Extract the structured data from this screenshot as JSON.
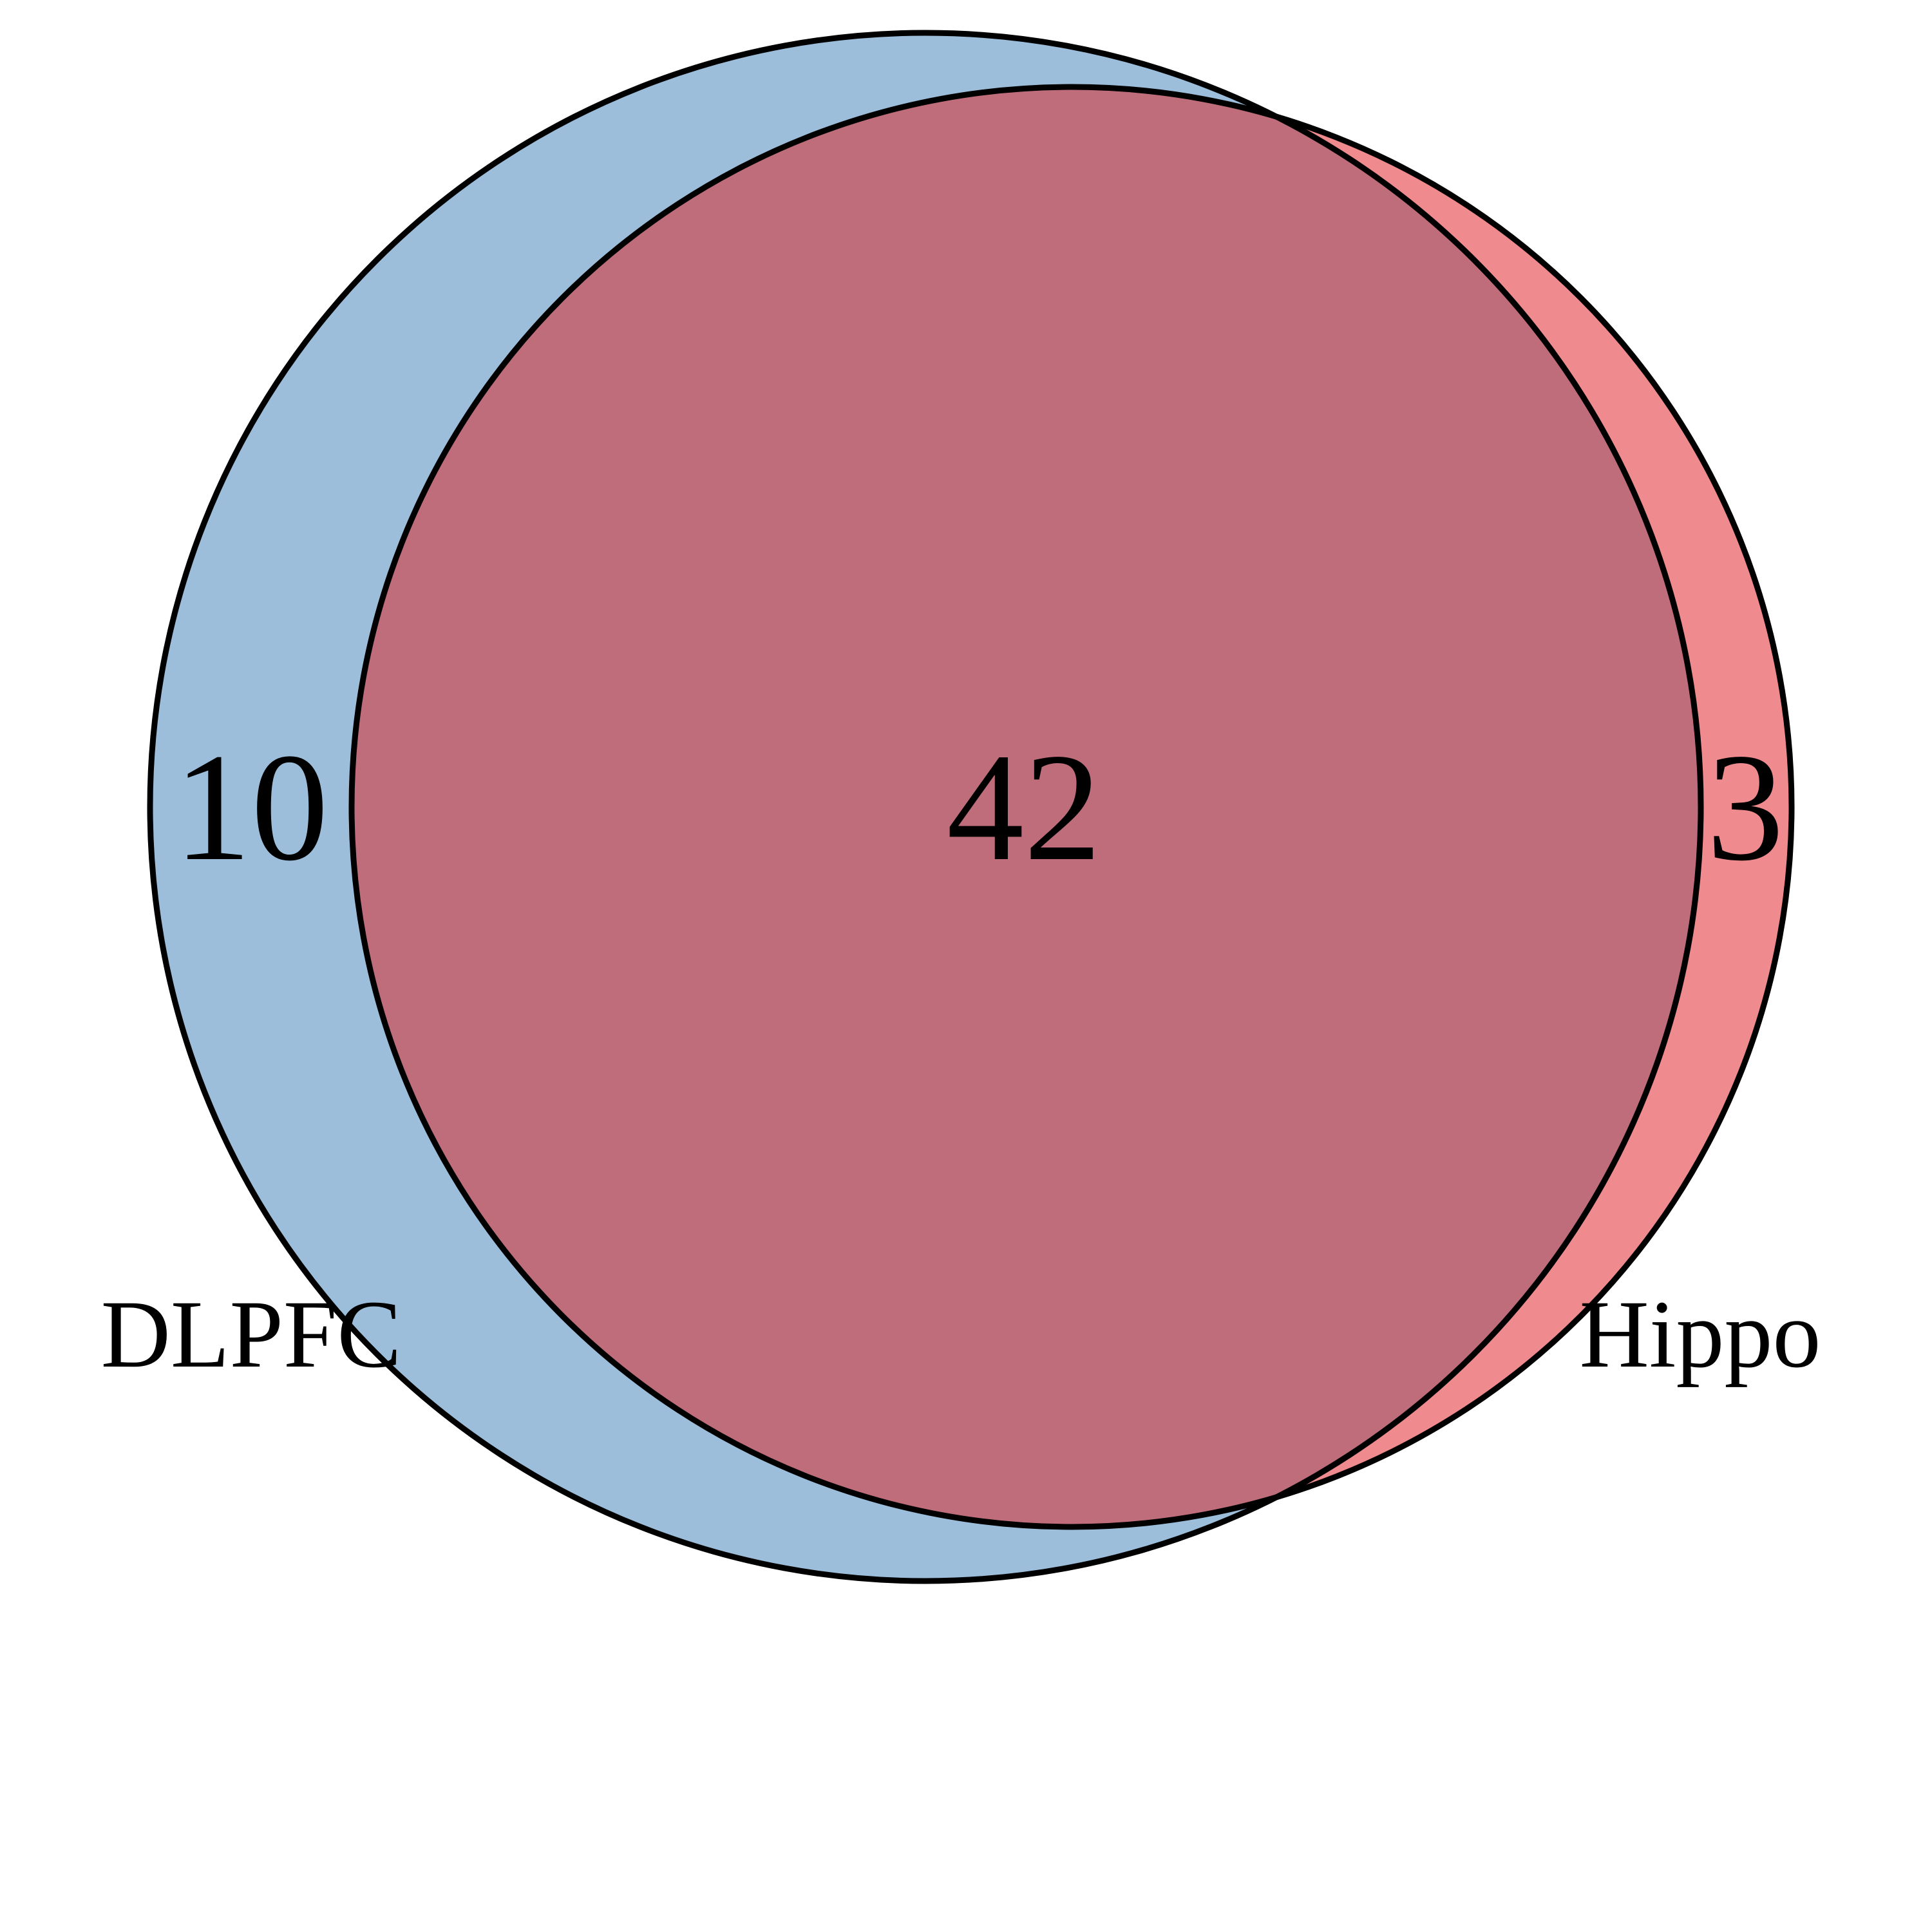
{
  "venn": {
    "sets": [
      {
        "name": "DLPFC",
        "color": "#9cbedb"
      },
      {
        "name": "Hippo",
        "color": "#ef8a8e"
      }
    ],
    "overlap_color": "#bf6d7b",
    "outline_color": "#000000",
    "regions": {
      "only_first": "10",
      "both": "42",
      "only_second": "3"
    }
  }
}
